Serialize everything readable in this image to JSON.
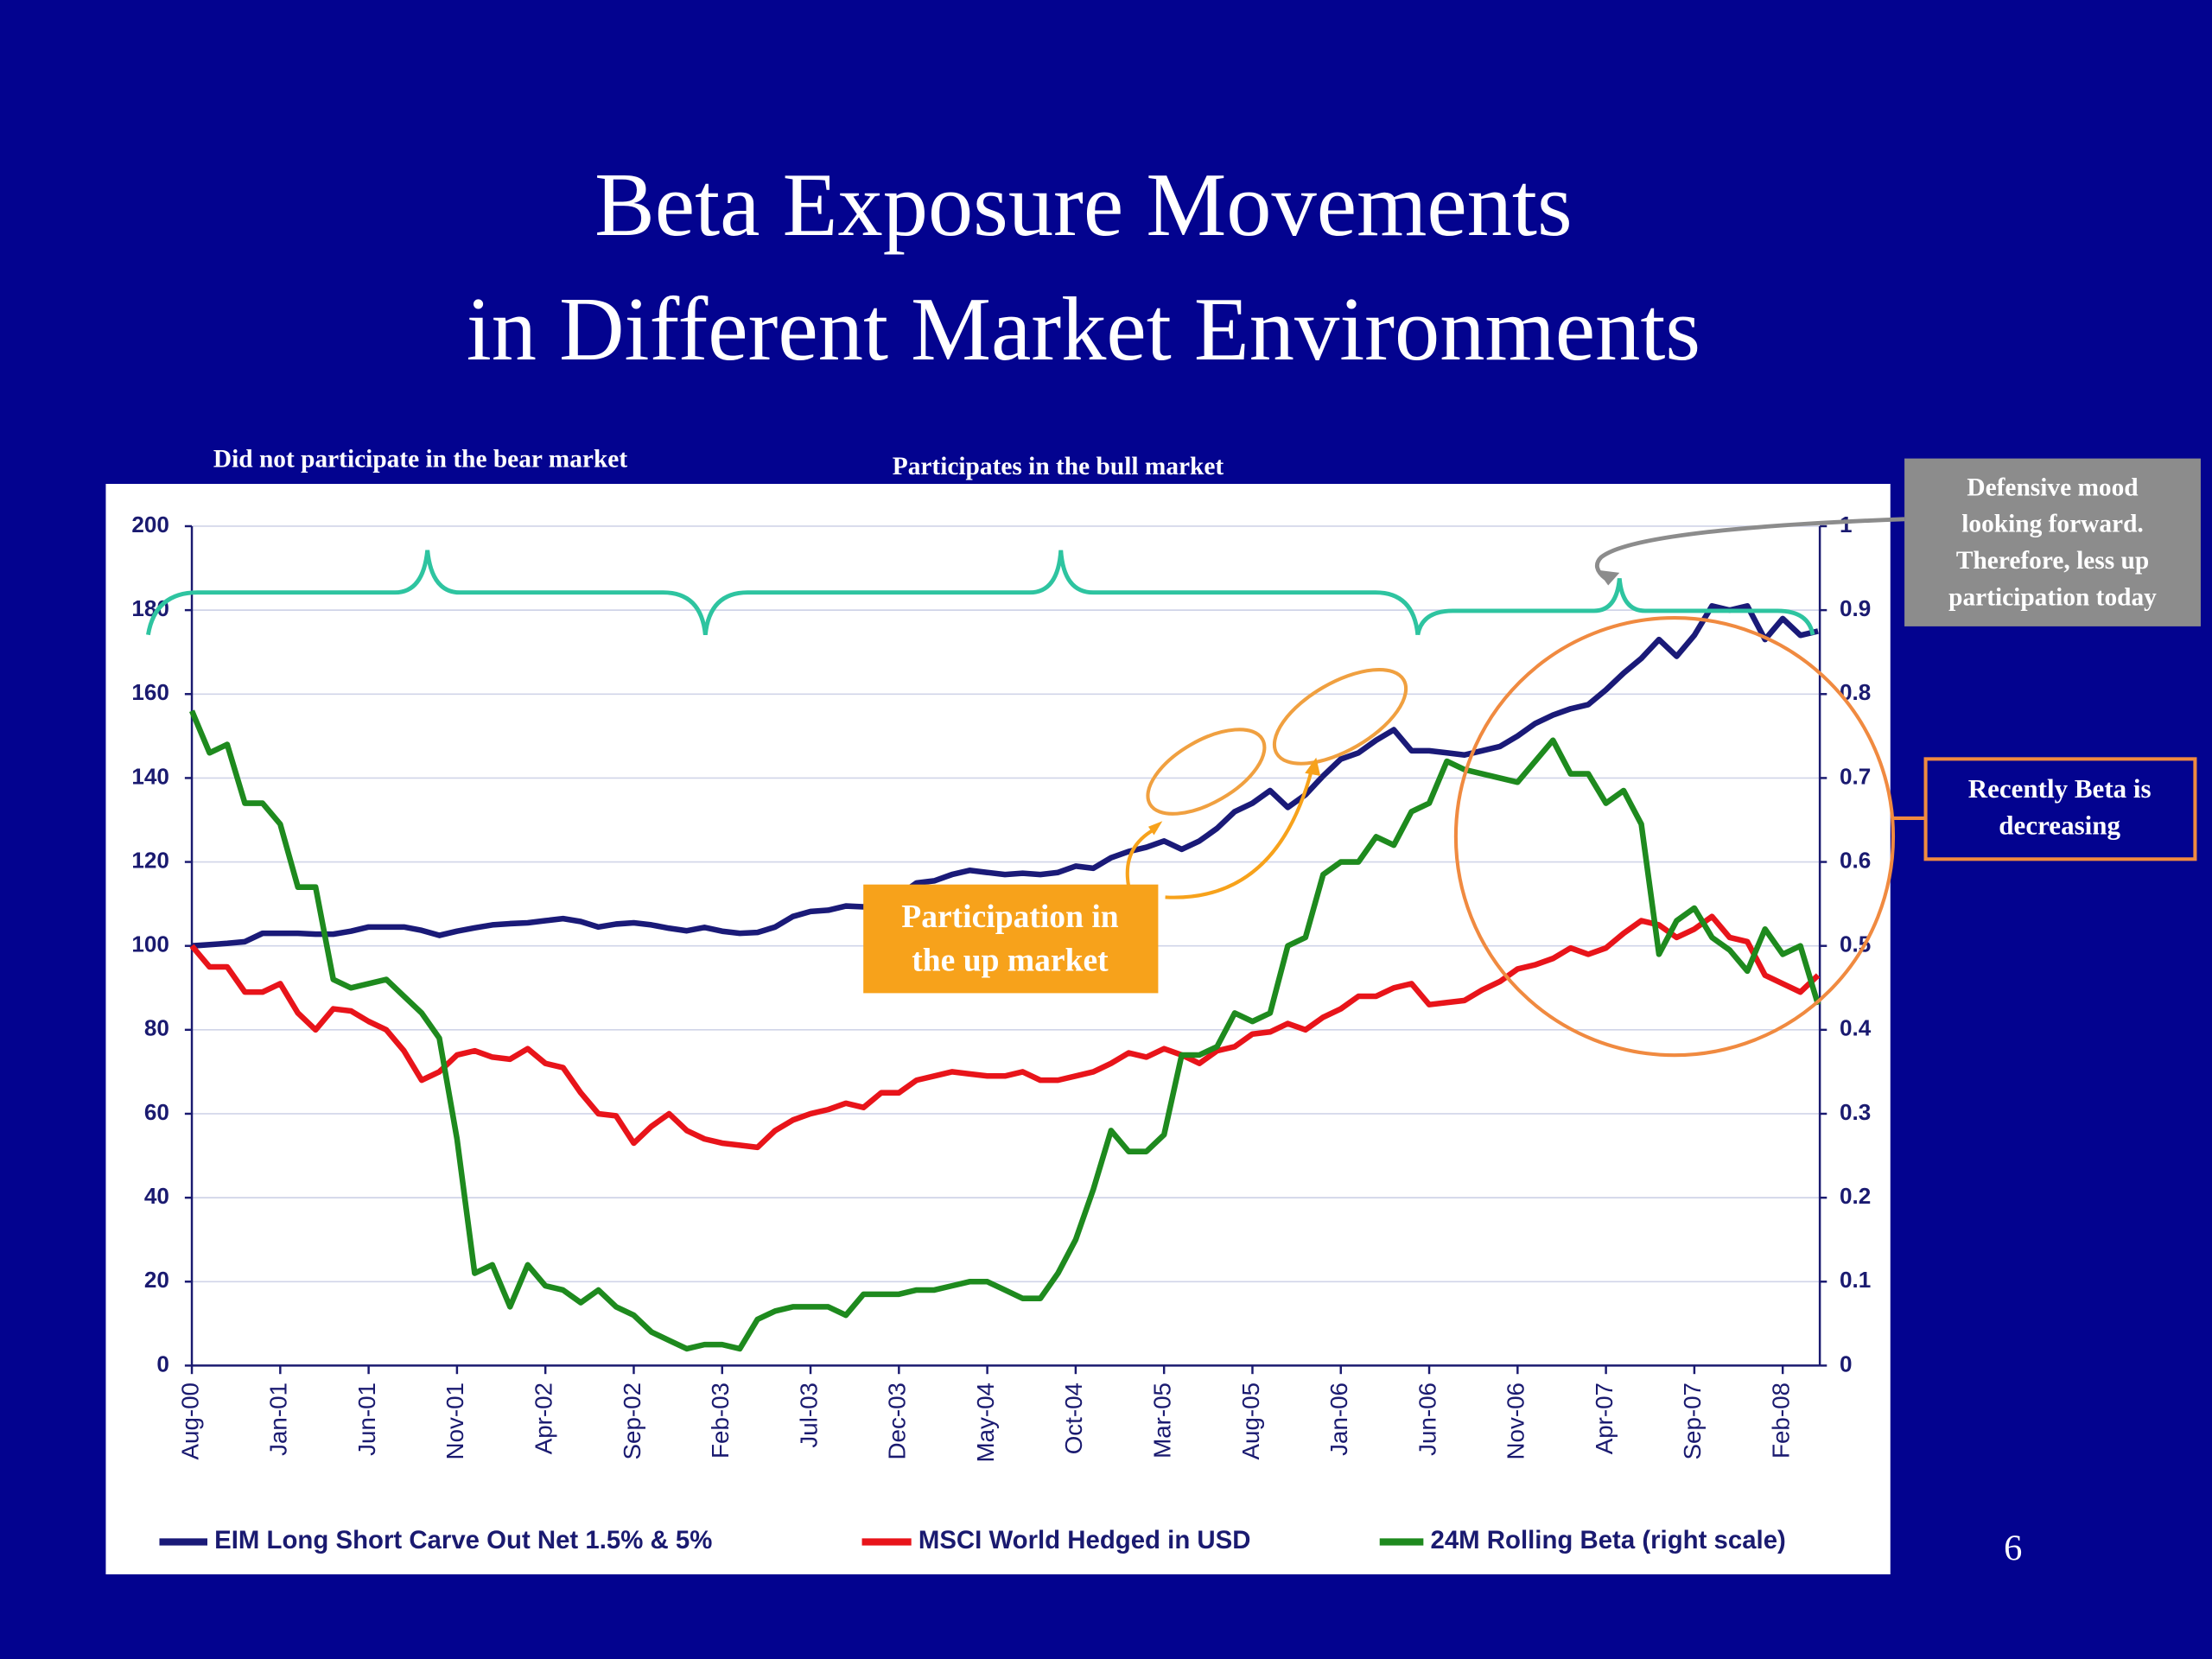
{
  "title": [
    "Beta Exposure Movements",
    "in Different Market Environments"
  ],
  "page_number": "6",
  "annotations": {
    "bear": "Did not participate in the bear market",
    "bull": "Participates in the bull market",
    "up_market": [
      "Participation in",
      "the up market"
    ],
    "defensive": [
      "Defensive mood",
      "looking forward.",
      "Therefore, less up",
      "participation today"
    ],
    "recent": [
      "Recently Beta is",
      "decreasing"
    ]
  },
  "chart_data": {
    "type": "line",
    "categories": [
      "Aug-00",
      null,
      null,
      null,
      null,
      "Jan-01",
      null,
      null,
      null,
      null,
      "Jun-01",
      null,
      null,
      null,
      null,
      "Nov-01",
      null,
      null,
      null,
      null,
      "Apr-02",
      null,
      null,
      null,
      null,
      "Sep-02",
      null,
      null,
      null,
      null,
      "Feb-03",
      null,
      null,
      null,
      null,
      "Jul-03",
      null,
      null,
      null,
      null,
      "Dec-03",
      null,
      null,
      null,
      null,
      "May-04",
      null,
      null,
      null,
      null,
      "Oct-04",
      null,
      null,
      null,
      null,
      "Mar-05",
      null,
      null,
      null,
      null,
      "Aug-05",
      null,
      null,
      null,
      null,
      "Jan-06",
      null,
      null,
      null,
      null,
      "Jun-06",
      null,
      null,
      null,
      null,
      "Nov-06",
      null,
      null,
      null,
      null,
      "Apr-07",
      null,
      null,
      null,
      null,
      "Sep-07",
      null,
      null,
      null,
      null,
      "Feb-08",
      null,
      null
    ],
    "ylim": [
      0,
      200
    ],
    "yticks": [
      0,
      20,
      40,
      60,
      80,
      100,
      120,
      140,
      160,
      180,
      200
    ],
    "y2lim": [
      0,
      1
    ],
    "y2ticks": [
      0,
      0.1,
      0.2,
      0.3,
      0.4,
      0.5,
      0.6,
      0.7,
      0.8,
      0.9,
      1
    ],
    "grid": true,
    "legend": "bottom",
    "series": [
      {
        "name": "EIM Long Short Carve Out Net 1.5% & 5%",
        "color": "#1a1a78",
        "values": [
          100,
          100.3,
          100.6,
          101,
          103,
          103,
          103,
          102.8,
          102.8,
          103.5,
          104.5,
          104.5,
          104.5,
          103.7,
          102.5,
          103.5,
          104.3,
          105,
          105.3,
          105.5,
          106,
          106.5,
          105.8,
          104.5,
          105.2,
          105.5,
          105,
          104.2,
          103.6,
          104.4,
          103.5,
          103,
          103.2,
          104.5,
          107,
          108.2,
          108.5,
          109.5,
          109.3,
          111,
          112,
          115,
          115.5,
          117,
          118,
          117.5,
          117,
          117.3,
          117,
          117.5,
          119,
          118.5,
          121,
          122.5,
          123.5,
          125,
          123,
          125,
          128,
          132,
          134,
          137,
          133,
          136,
          140.5,
          144.5,
          146,
          149,
          151.5,
          146.5,
          146.5,
          146,
          145.5,
          146.5,
          147.5,
          150,
          153,
          155,
          156.5,
          157.5,
          161,
          165,
          168.5,
          173,
          169,
          174,
          181,
          180,
          181,
          173,
          178,
          174,
          175
        ]
      },
      {
        "name": "MSCI World Hedged in USD",
        "color": "#e8141a",
        "values": [
          100,
          95,
          95,
          89,
          89,
          91,
          84,
          80,
          85,
          84.5,
          82,
          80,
          75,
          68,
          70,
          74,
          75,
          73.5,
          73,
          75.5,
          72,
          71,
          65,
          60,
          59.5,
          53,
          57,
          60,
          56,
          54,
          53,
          52.5,
          52,
          56,
          58.5,
          60,
          61,
          62.5,
          61.5,
          65,
          65,
          68,
          69,
          70,
          69.5,
          69,
          69,
          70,
          68,
          68,
          69,
          70,
          72,
          74.5,
          73.5,
          75.5,
          74,
          72,
          75,
          76,
          79,
          79.5,
          81.5,
          80,
          83,
          85,
          88,
          88,
          90,
          91,
          86,
          86.5,
          87,
          89.5,
          91.5,
          94.5,
          95.5,
          97,
          99.5,
          98,
          99.5,
          103,
          106,
          105,
          102,
          104,
          107,
          102,
          101,
          93,
          91,
          89,
          93
        ]
      },
      {
        "name": "24M Rolling Beta (right scale)",
        "color": "#1e8a1e",
        "axis": "y2",
        "values": [
          0.78,
          0.73,
          0.74,
          0.67,
          0.67,
          0.645,
          0.57,
          0.57,
          0.46,
          0.45,
          0.455,
          0.46,
          0.44,
          0.42,
          0.39,
          0.27,
          0.11,
          0.12,
          0.07,
          0.12,
          0.095,
          0.09,
          0.075,
          0.09,
          0.07,
          0.06,
          0.04,
          0.03,
          0.02,
          0.025,
          0.025,
          0.02,
          0.055,
          0.065,
          0.07,
          0.07,
          0.07,
          0.06,
          0.085,
          0.085,
          0.085,
          0.09,
          0.09,
          0.095,
          0.1,
          0.1,
          0.09,
          0.08,
          0.08,
          0.11,
          0.15,
          0.21,
          0.28,
          0.255,
          0.255,
          0.275,
          0.37,
          0.37,
          0.38,
          0.42,
          0.41,
          0.42,
          0.5,
          0.51,
          0.585,
          0.6,
          0.6,
          0.63,
          0.62,
          0.66,
          0.67,
          0.72,
          0.71,
          0.705,
          0.7,
          0.695,
          0.72,
          0.745,
          0.705,
          0.705,
          0.67,
          0.685,
          0.645,
          0.49,
          0.53,
          0.545,
          0.51,
          0.495,
          0.47,
          0.52,
          0.49,
          0.5,
          0.43
        ]
      }
    ]
  }
}
